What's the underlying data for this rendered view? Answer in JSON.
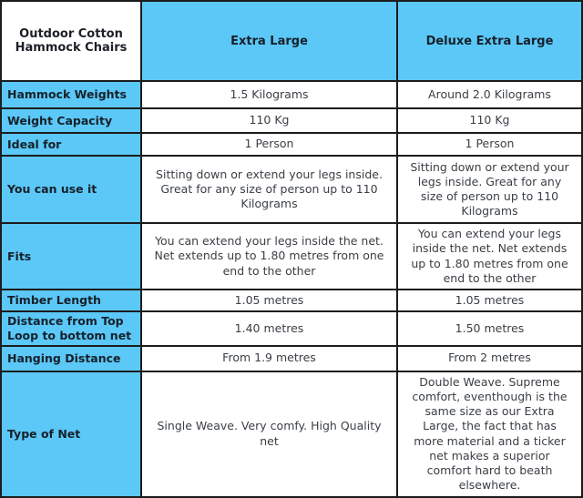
{
  "table": {
    "title": "Outdoor Cotton Hammock Chairs",
    "columns": {
      "extra_large": "Extra Large",
      "deluxe_extra_large": "Deluxe Extra Large"
    },
    "rows": [
      {
        "label": "Hammock Weights",
        "extra_large": "1.5 Kilograms",
        "deluxe_extra_large": "Around 2.0 Kilograms"
      },
      {
        "label": "Weight Capacity",
        "extra_large": "110 Kg",
        "deluxe_extra_large": "110 Kg"
      },
      {
        "label": "Ideal for",
        "extra_large": "1 Person",
        "deluxe_extra_large": "1 Person"
      },
      {
        "label": "You can use it",
        "extra_large": "Sitting down or extend your legs inside. Great for any size of person up to 110 Kilograms",
        "deluxe_extra_large": "Sitting down or extend your legs inside. Great for any size of person up to 110 Kilograms"
      },
      {
        "label": "Fits",
        "extra_large": "You can extend your legs inside the net. Net extends up to 1.80 metres from one end to the other",
        "deluxe_extra_large": "You can extend your legs inside the net. Net extends up to 1.80 metres from one end to the other"
      },
      {
        "label": "Timber Length",
        "extra_large": "1.05 metres",
        "deluxe_extra_large": "1.05 metres"
      },
      {
        "label": "Distance from Top Loop to bottom net",
        "extra_large": "1.40 metres",
        "deluxe_extra_large": "1.50 metres"
      },
      {
        "label": "Hanging Distance",
        "extra_large": "From 1.9 metres",
        "deluxe_extra_large": "From 2 metres"
      },
      {
        "label": "Type of Net",
        "extra_large": "Single Weave. Very comfy. High Quality net",
        "deluxe_extra_large": "Double Weave. Supreme comfort, eventhough is the same size as our Extra Large, the fact that has more material and a ticker net makes a superior comfort hard to beath elsewhere."
      }
    ]
  },
  "colors": {
    "accent_blue": "#5bc8f7",
    "border": "#1c1c1c",
    "header_text": "#17202a",
    "value_text": "#3a3f45"
  }
}
